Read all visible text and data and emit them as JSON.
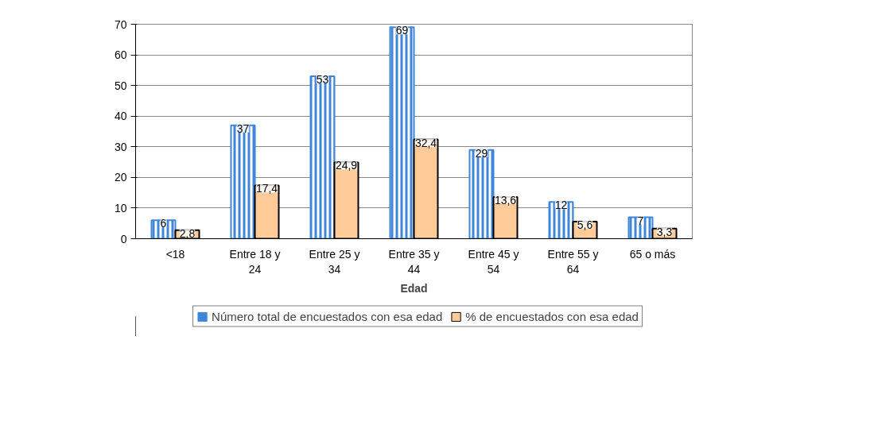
{
  "chart_data": {
    "type": "bar",
    "xlabel": "Edad",
    "categories": [
      "<18",
      "Entre 18 y 24",
      "Entre 25 y 34",
      "Entre 35 y 44",
      "Entre 45 y 54",
      "Entre 55 y 64",
      "65 o más"
    ],
    "series": [
      {
        "name": "Número total de encuestados con esa edad",
        "color": "#3f86d9",
        "values": [
          6,
          37,
          53,
          69,
          29,
          12,
          7
        ],
        "value_labels": [
          "6",
          "37",
          "53",
          "69",
          "29",
          "12",
          "7"
        ]
      },
      {
        "name": "% de encuestados con esa edad",
        "color": "#ffcc99",
        "values": [
          2.8,
          17.4,
          24.9,
          32.4,
          13.6,
          5.6,
          3.3
        ],
        "value_labels": [
          "2,8",
          "17,4",
          "24,9",
          "32,4",
          "13,6",
          "5,6",
          "3,3"
        ]
      }
    ],
    "ylim": [
      0,
      70
    ],
    "yticks": [
      0,
      10,
      20,
      30,
      40,
      50,
      60,
      70
    ],
    "grid": "y",
    "legend": "bottom"
  }
}
